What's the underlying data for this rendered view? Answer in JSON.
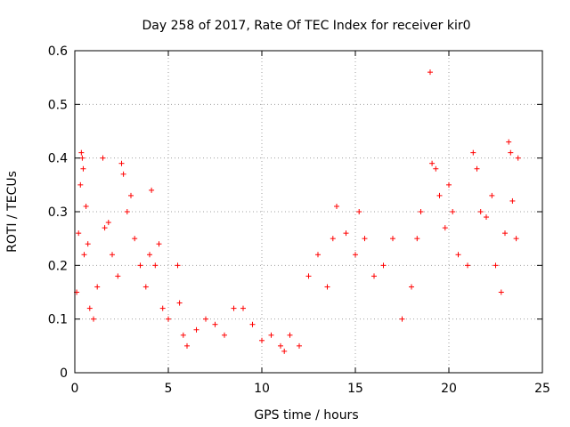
{
  "chart_data": {
    "type": "scatter",
    "title": "Day 258 of 2017, Rate Of TEC Index for receiver kir0",
    "xlabel": "GPS time / hours",
    "ylabel": "ROTI / TECUs",
    "xlim": [
      0,
      25
    ],
    "ylim": [
      0,
      0.6
    ],
    "xticks": [
      0,
      5,
      10,
      15,
      20,
      25
    ],
    "xtick_labels": [
      "0",
      "5",
      "10",
      "15",
      "20",
      "25"
    ],
    "yticks": [
      0,
      0.1,
      0.2,
      0.3,
      0.4,
      0.5,
      0.6
    ],
    "ytick_labels": [
      "0",
      "0.1",
      "0.2",
      "0.3",
      "0.4",
      "0.5",
      "0.6"
    ],
    "grid": true,
    "marker": "+",
    "marker_color": "#ff0000",
    "series": [
      {
        "name": "ROTI",
        "points": [
          [
            0.1,
            0.15
          ],
          [
            0.2,
            0.26
          ],
          [
            0.3,
            0.35
          ],
          [
            0.35,
            0.41
          ],
          [
            0.4,
            0.4
          ],
          [
            0.45,
            0.38
          ],
          [
            0.5,
            0.22
          ],
          [
            0.6,
            0.31
          ],
          [
            0.7,
            0.24
          ],
          [
            0.8,
            0.12
          ],
          [
            1.0,
            0.1
          ],
          [
            1.2,
            0.16
          ],
          [
            1.5,
            0.4
          ],
          [
            1.6,
            0.27
          ],
          [
            1.8,
            0.28
          ],
          [
            2.0,
            0.22
          ],
          [
            2.3,
            0.18
          ],
          [
            2.5,
            0.39
          ],
          [
            2.6,
            0.37
          ],
          [
            2.8,
            0.3
          ],
          [
            3.0,
            0.33
          ],
          [
            3.2,
            0.25
          ],
          [
            3.5,
            0.2
          ],
          [
            3.8,
            0.16
          ],
          [
            4.0,
            0.22
          ],
          [
            4.1,
            0.34
          ],
          [
            4.3,
            0.2
          ],
          [
            4.5,
            0.24
          ],
          [
            4.7,
            0.12
          ],
          [
            5.0,
            0.1
          ],
          [
            5.5,
            0.2
          ],
          [
            5.6,
            0.13
          ],
          [
            5.8,
            0.07
          ],
          [
            6.0,
            0.05
          ],
          [
            6.5,
            0.08
          ],
          [
            7.0,
            0.1
          ],
          [
            7.5,
            0.09
          ],
          [
            8.0,
            0.07
          ],
          [
            8.5,
            0.12
          ],
          [
            9.0,
            0.12
          ],
          [
            9.5,
            0.09
          ],
          [
            10.0,
            0.06
          ],
          [
            10.5,
            0.07
          ],
          [
            11.0,
            0.05
          ],
          [
            11.2,
            0.04
          ],
          [
            11.5,
            0.07
          ],
          [
            12.0,
            0.05
          ],
          [
            12.5,
            0.18
          ],
          [
            13.0,
            0.22
          ],
          [
            13.5,
            0.16
          ],
          [
            13.8,
            0.25
          ],
          [
            14.0,
            0.31
          ],
          [
            14.5,
            0.26
          ],
          [
            15.0,
            0.22
          ],
          [
            15.2,
            0.3
          ],
          [
            15.5,
            0.25
          ],
          [
            16.0,
            0.18
          ],
          [
            16.5,
            0.2
          ],
          [
            17.0,
            0.25
          ],
          [
            17.5,
            0.1
          ],
          [
            18.0,
            0.16
          ],
          [
            18.3,
            0.25
          ],
          [
            18.5,
            0.3
          ],
          [
            19.0,
            0.56
          ],
          [
            19.1,
            0.39
          ],
          [
            19.3,
            0.38
          ],
          [
            19.5,
            0.33
          ],
          [
            19.8,
            0.27
          ],
          [
            20.0,
            0.35
          ],
          [
            20.2,
            0.3
          ],
          [
            20.5,
            0.22
          ],
          [
            21.0,
            0.2
          ],
          [
            21.3,
            0.41
          ],
          [
            21.5,
            0.38
          ],
          [
            21.7,
            0.3
          ],
          [
            22.0,
            0.29
          ],
          [
            22.3,
            0.33
          ],
          [
            22.5,
            0.2
          ],
          [
            22.8,
            0.15
          ],
          [
            23.0,
            0.26
          ],
          [
            23.2,
            0.43
          ],
          [
            23.3,
            0.41
          ],
          [
            23.4,
            0.32
          ],
          [
            23.6,
            0.25
          ],
          [
            23.7,
            0.4
          ]
        ]
      }
    ]
  }
}
